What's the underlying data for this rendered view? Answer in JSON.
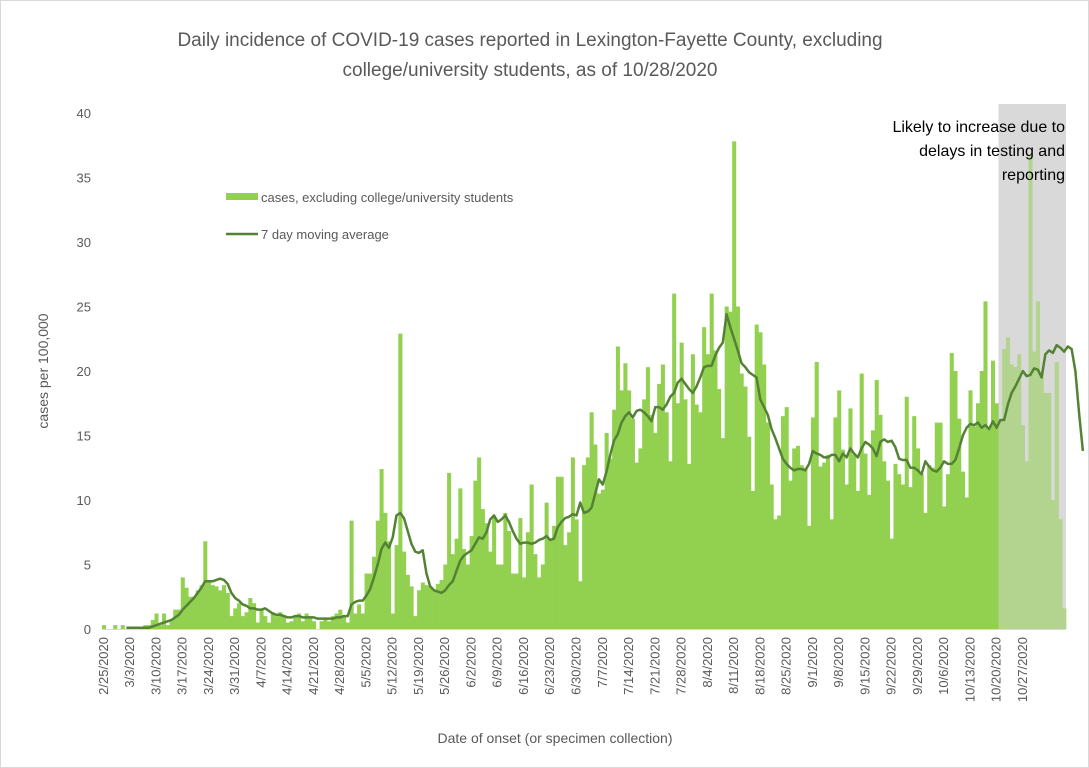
{
  "chart_data": {
    "type": "bar",
    "title_lines": [
      "Daily incidence of COVID-19 cases reported in Lexington-Fayette County, excluding",
      "college/university students, as of 10/28/2020"
    ],
    "xlabel": "Date of onset (or specimen collection)",
    "ylabel": "cases per 100,000",
    "ylim": [
      0,
      40
    ],
    "yticks": [
      0,
      5,
      10,
      15,
      20,
      25,
      30,
      35,
      40
    ],
    "grid": false,
    "legend_position": "upper-left-inside",
    "start_date": "2/25/2020",
    "end_date": "10/28/2020",
    "xtick_labels": [
      "2/25/2020",
      "3/3/2020",
      "3/10/2020",
      "3/17/2020",
      "3/24/2020",
      "3/31/2020",
      "4/7/2020",
      "4/14/2020",
      "4/21/2020",
      "4/28/2020",
      "5/5/2020",
      "5/12/2020",
      "5/19/2020",
      "5/26/2020",
      "6/2/2020",
      "6/9/2020",
      "6/16/2020",
      "6/23/2020",
      "6/30/2020",
      "7/7/2020",
      "7/14/2020",
      "7/21/2020",
      "7/28/2020",
      "8/4/2020",
      "8/11/2020",
      "8/18/2020",
      "8/25/2020",
      "9/1/2020",
      "9/8/2020",
      "9/15/2020",
      "9/22/2020",
      "9/29/2020",
      "10/6/2020",
      "10/13/2020",
      "10/20/2020",
      "10/27/2020"
    ],
    "series": [
      {
        "name": "cases, excluding college/university students",
        "kind": "bar",
        "color": "#92d050",
        "values": [
          0.3,
          0,
          0,
          0.3,
          0,
          0.3,
          0,
          0,
          0,
          0,
          0,
          0.3,
          0.3,
          0.7,
          1.2,
          0.3,
          1.2,
          0.3,
          0.7,
          1.5,
          1.5,
          4.0,
          3.2,
          2.5,
          2.5,
          3.0,
          3.4,
          6.8,
          3.7,
          3.4,
          3.3,
          3.0,
          3.4,
          2.8,
          1.0,
          1.6,
          2.0,
          1.0,
          1.3,
          2.4,
          2.0,
          0.5,
          1.5,
          1.0,
          0.5,
          1.3,
          1.0,
          1.3,
          1.0,
          0.5,
          0.6,
          1.0,
          1.2,
          0.6,
          1.2,
          1.0,
          0.6,
          0,
          0.6,
          0.8,
          0.6,
          1.0,
          1.2,
          1.5,
          1.0,
          0.5,
          8.4,
          1.2,
          1.9,
          1.2,
          4.3,
          4.3,
          5.6,
          8.4,
          12.4,
          9.0,
          6.8,
          1.2,
          6.5,
          22.9,
          6.0,
          4.2,
          3.3,
          1.0,
          3.0,
          3.6,
          3.4,
          3.3,
          3.0,
          3.5,
          3.8,
          5.0,
          12.1,
          5.8,
          7.0,
          10.9,
          6.2,
          5.0,
          7.2,
          11.5,
          13.3,
          9.3,
          8.2,
          6.0,
          8.8,
          5.0,
          5.0,
          9.0,
          7.6,
          4.3,
          4.3,
          8.6,
          4.0,
          7.5,
          11.2,
          5.8,
          4.0,
          5.0,
          9.8,
          7.0,
          8.0,
          11.8,
          11.8,
          6.5,
          7.5,
          13.3,
          8.5,
          3.7,
          12.7,
          13.3,
          16.8,
          14.3,
          10.5,
          10.8,
          15.2,
          13.2,
          17.0,
          21.9,
          18.5,
          20.6,
          18.5,
          16.3,
          12.9,
          14.0,
          17.8,
          20.3,
          16.6,
          15.2,
          19.0,
          20.5,
          16.8,
          13.0,
          26.0,
          17.5,
          22.2,
          17.8,
          12.8,
          21.3,
          17.4,
          16.8,
          23.4,
          21.3,
          26.0,
          21.6,
          18.6,
          14.8,
          25.0,
          24.6,
          37.8,
          25.0,
          19.8,
          18.8,
          14.9,
          10.7,
          23.6,
          23.0,
          20.5,
          16.0,
          11.2,
          8.5,
          8.8,
          16.5,
          17.2,
          11.5,
          14.0,
          14.2,
          12.7,
          12.5,
          8.0,
          16.4,
          20.7,
          12.6,
          12.9,
          13.5,
          8.5,
          16.4,
          18.5,
          13.9,
          11.2,
          17.1,
          13.5,
          10.7,
          19.8,
          13.6,
          10.4,
          15.4,
          19.3,
          16.6,
          13.0,
          11.5,
          7.0,
          12.8,
          12.0,
          11.2,
          18.0,
          11.0,
          16.5,
          14.0,
          12.0,
          9.0,
          12.7,
          12.5,
          16.0,
          16.0,
          9.5,
          12.0,
          21.4,
          20.0,
          16.3,
          12.2,
          10.2,
          18.5,
          15.7,
          17.5,
          20.0,
          25.4,
          15.5,
          20.8,
          17.5,
          16.2,
          21.7,
          22.6,
          20.5,
          20.3,
          21.3,
          15.8,
          13.0,
          36.8,
          21.5,
          25.4,
          20.0,
          18.3,
          18.3,
          10.0,
          20.7,
          8.5,
          1.6
        ]
      },
      {
        "name": "7 day moving average",
        "kind": "line",
        "color": "#548235",
        "values": [
          null,
          null,
          null,
          null,
          null,
          null,
          0.1,
          0.1,
          0.1,
          0.1,
          0.1,
          0.1,
          0.1,
          0.2,
          0.3,
          0.4,
          0.5,
          0.6,
          0.7,
          0.9,
          1.1,
          1.5,
          1.8,
          2.1,
          2.4,
          2.8,
          3.2,
          3.7,
          3.7,
          3.7,
          3.8,
          3.9,
          3.8,
          3.5,
          2.8,
          2.4,
          2.2,
          1.9,
          1.8,
          1.6,
          1.6,
          1.5,
          1.5,
          1.6,
          1.4,
          1.2,
          1.1,
          1.1,
          1.0,
          0.9,
          0.9,
          1.0,
          1.0,
          0.9,
          0.9,
          0.9,
          0.9,
          0.8,
          0.8,
          0.8,
          0.8,
          0.8,
          0.9,
          0.9,
          1.0,
          1.0,
          1.9,
          2.1,
          2.2,
          2.2,
          2.6,
          3.1,
          4.0,
          5.0,
          6.2,
          6.7,
          6.3,
          7.1,
          8.8,
          9.0,
          8.6,
          7.6,
          6.6,
          6.0,
          5.9,
          6.1,
          4.3,
          3.3,
          3.0,
          2.9,
          2.8,
          3.0,
          3.4,
          3.7,
          4.5,
          5.3,
          5.7,
          5.9,
          6.1,
          6.6,
          7.1,
          7.0,
          7.5,
          8.5,
          8.8,
          8.3,
          8.5,
          8.8,
          8.3,
          7.6,
          7.0,
          6.6,
          6.7,
          6.7,
          6.6,
          6.7,
          6.9,
          7.0,
          7.2,
          6.9,
          7.0,
          7.9,
          8.3,
          8.6,
          8.7,
          8.9,
          8.8,
          9.8,
          9.0,
          9.1,
          9.4,
          10.5,
          11.6,
          11.2,
          12.2,
          13.5,
          14.6,
          15.1,
          16.0,
          16.5,
          16.8,
          16.4,
          16.9,
          17.0,
          16.8,
          16.5,
          16.1,
          17.2,
          17.2,
          17.0,
          17.4,
          18.0,
          18.3,
          19.1,
          19.4,
          19.0,
          18.6,
          18.3,
          18.8,
          19.5,
          20.3,
          20.4,
          20.4,
          21.2,
          21.8,
          22.2,
          24.4,
          23.4,
          22.5,
          21.6,
          20.6,
          20.3,
          19.9,
          19.7,
          19.5,
          17.8,
          17.2,
          16.6,
          15.5,
          14.8,
          14.0,
          13.2,
          12.8,
          12.5,
          12.3,
          12.4,
          12.4,
          12.3,
          12.8,
          13.8,
          13.6,
          13.5,
          13.3,
          13.3,
          13.5,
          13.5,
          13.0,
          13.6,
          13.3,
          14.0,
          13.6,
          13.3,
          14.0,
          14.5,
          14.3,
          14.0,
          13.4,
          14.5,
          14.7,
          14.5,
          14.6,
          14.1,
          13.2,
          13.1,
          13.1,
          12.5,
          12.5,
          12.3,
          12.0,
          13.0,
          12.6,
          12.3,
          12.2,
          12.5,
          13.0,
          12.8,
          12.8,
          13.1,
          14.0,
          15.0,
          15.6,
          15.9,
          15.8,
          16.0,
          15.6,
          15.8,
          15.5,
          16.1,
          15.6,
          16.2,
          16.2,
          17.4,
          18.3,
          18.8,
          19.4,
          20.0,
          19.6,
          19.7,
          20.2,
          20.1,
          19.5,
          21.3,
          21.6,
          21.4,
          22.0,
          21.8,
          21.5,
          21.9,
          21.7,
          20.0,
          16.7,
          13.8
        ]
      }
    ],
    "shaded_region": {
      "start_date": "10/21/2020",
      "end_date": "10/28/2020",
      "color": "#d9d9d9",
      "annotation": [
        "Likely to increase due to",
        "delays in testing and",
        "reporting"
      ]
    }
  }
}
